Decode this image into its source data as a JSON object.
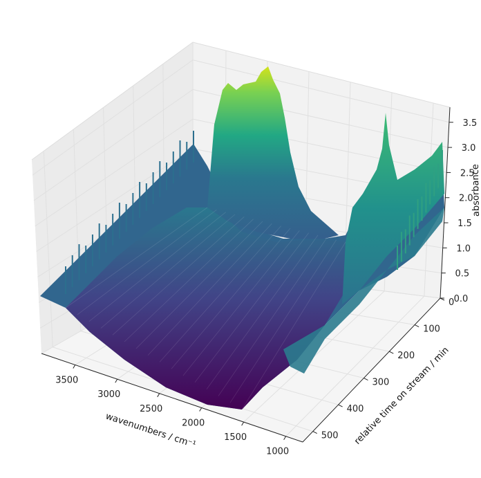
{
  "chart_data": {
    "type": "surface",
    "title": "",
    "xlabel": "wavenumbers / cm⁻¹",
    "ylabel": "relative time on stream / min",
    "zlabel": "absorbance",
    "x_ticks": [
      "3500",
      "3000",
      "2500",
      "2000",
      "1500",
      "1000"
    ],
    "x_tick_values": [
      3500,
      3000,
      2500,
      2000,
      1500,
      1000
    ],
    "y_ticks": [
      "0",
      "100",
      "200",
      "300",
      "400",
      "500"
    ],
    "y_tick_values": [
      0,
      100,
      200,
      300,
      400,
      500
    ],
    "z_ticks": [
      "0.0",
      "0.5",
      "1.0",
      "1.5",
      "2.0",
      "2.5",
      "3.0",
      "3.5"
    ],
    "z_tick_values": [
      0.0,
      0.5,
      1.0,
      1.5,
      2.0,
      2.5,
      3.0,
      3.5
    ],
    "xlim": [
      3900,
      800
    ],
    "ylim": [
      0,
      540
    ],
    "zlim": [
      0,
      3.8
    ],
    "colormap": "viridis",
    "grid": true,
    "features": [
      {
        "wavenumber": 3000,
        "max_absorbance": 3.8
      },
      {
        "wavenumber": 1050,
        "max_absorbance": 3.6
      }
    ]
  }
}
